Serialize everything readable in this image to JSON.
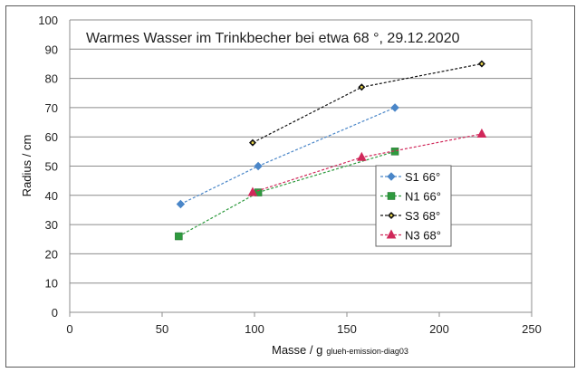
{
  "chart_data": {
    "type": "scatter",
    "title": "Warmes Wasser im Trinkbecher   bei etwa 68 °, 29.12.2020",
    "xlabel": "Masse / g",
    "xlabel_note": "glueh-emission-diag03",
    "ylabel": "Radius / cm",
    "xlim": [
      0,
      250
    ],
    "ylim": [
      0,
      100
    ],
    "xticks": [
      0,
      50,
      100,
      150,
      200,
      250
    ],
    "yticks": [
      0,
      10,
      20,
      30,
      40,
      50,
      60,
      70,
      80,
      90,
      100
    ],
    "grid": "horizontal",
    "legend_position": "right",
    "series": [
      {
        "name": "S1 66°",
        "color": "#4a86c8",
        "marker": "diamond",
        "x": [
          60,
          102,
          176
        ],
        "y": [
          37,
          50,
          70
        ]
      },
      {
        "name": "N1 66°",
        "color": "#2e9a3e",
        "marker": "square",
        "x": [
          59,
          102,
          176
        ],
        "y": [
          26,
          41,
          55
        ]
      },
      {
        "name": "S3 68°",
        "color": "#111111",
        "marker": "star",
        "x": [
          99,
          158,
          223
        ],
        "y": [
          58,
          77,
          85
        ]
      },
      {
        "name": "N3 68°",
        "color": "#d0285a",
        "marker": "triangle",
        "x": [
          99,
          158,
          223
        ],
        "y": [
          41,
          53,
          61
        ]
      }
    ]
  }
}
